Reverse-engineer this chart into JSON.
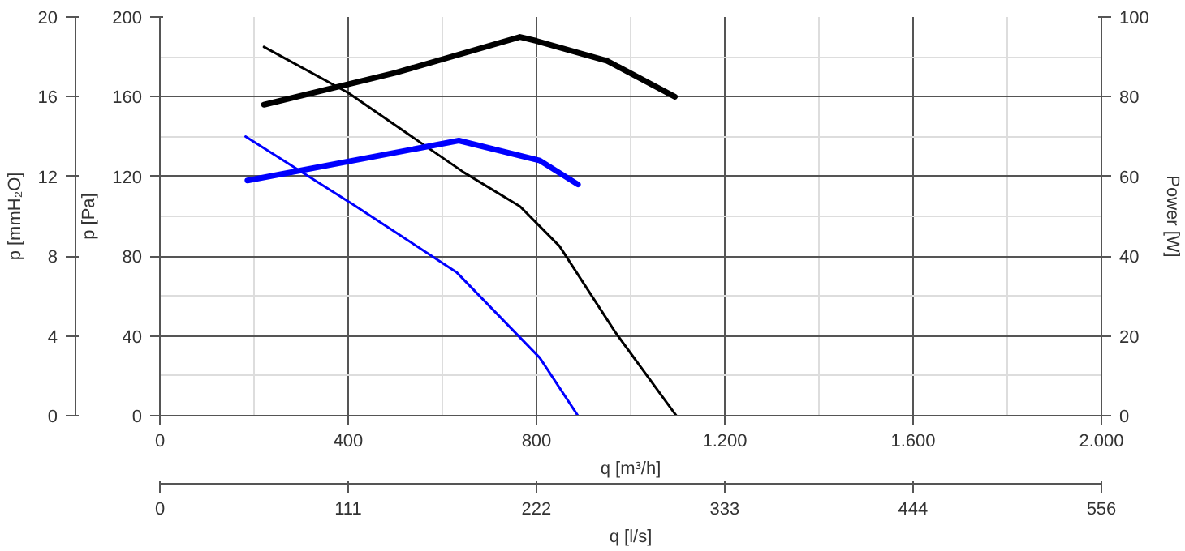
{
  "chart_data": {
    "type": "line",
    "xlabel": "q [m³/h]",
    "ylabel": "p [Pa]",
    "y2label": "Power [W]",
    "y3label": "p [mmH₂O]",
    "x2label": "q [l/s]",
    "xlim": [
      0,
      2000
    ],
    "xticks": [
      0,
      400,
      800,
      {
        "value": 1200,
        "label": "1.200"
      },
      {
        "value": 1600,
        "label": "1.600"
      },
      {
        "value": 2000,
        "label": "2.000"
      }
    ],
    "ylim": [
      0,
      200
    ],
    "yticks": [
      0,
      40,
      80,
      120,
      160,
      200
    ],
    "y2lim": [
      0,
      100
    ],
    "y2ticks": [
      0,
      20,
      40,
      60,
      80,
      100
    ],
    "y3lim": [
      0,
      20
    ],
    "y3ticks": [
      0,
      4,
      8,
      12,
      16,
      20
    ],
    "x2lim": [
      0,
      555.6
    ],
    "x2ticks": [
      0,
      {
        "value": 111.1,
        "label": "111"
      },
      {
        "value": 222.2,
        "label": "222"
      },
      {
        "value": 333.3,
        "label": "333"
      },
      {
        "value": 444.4,
        "label": "444"
      },
      {
        "value": 555.6,
        "label": "556"
      }
    ],
    "grid": true,
    "marker": "none",
    "line_style": "solid",
    "series": [
      {
        "color": "#000000",
        "x": [
          221,
          400,
          646,
          765,
          849,
          967,
          1097
        ],
        "values": [
          185,
          162,
          122,
          105,
          85,
          42,
          0
        ]
      },
      {
        "color": "#000000",
        "axis": "y2",
        "x": [
          221,
          500,
          765,
          800,
          950,
          1094
        ],
        "values": [
          78,
          86,
          95,
          94,
          89,
          80
        ]
      },
      {
        "color": "#0000ff",
        "x": [
          182,
          410,
          630,
          807,
          888
        ],
        "values": [
          140,
          106,
          72,
          29,
          0
        ]
      },
      {
        "color": "#0000ff",
        "axis": "y2",
        "x": [
          186,
          635,
          807,
          888
        ],
        "values": [
          59,
          69,
          64,
          58
        ]
      }
    ]
  }
}
